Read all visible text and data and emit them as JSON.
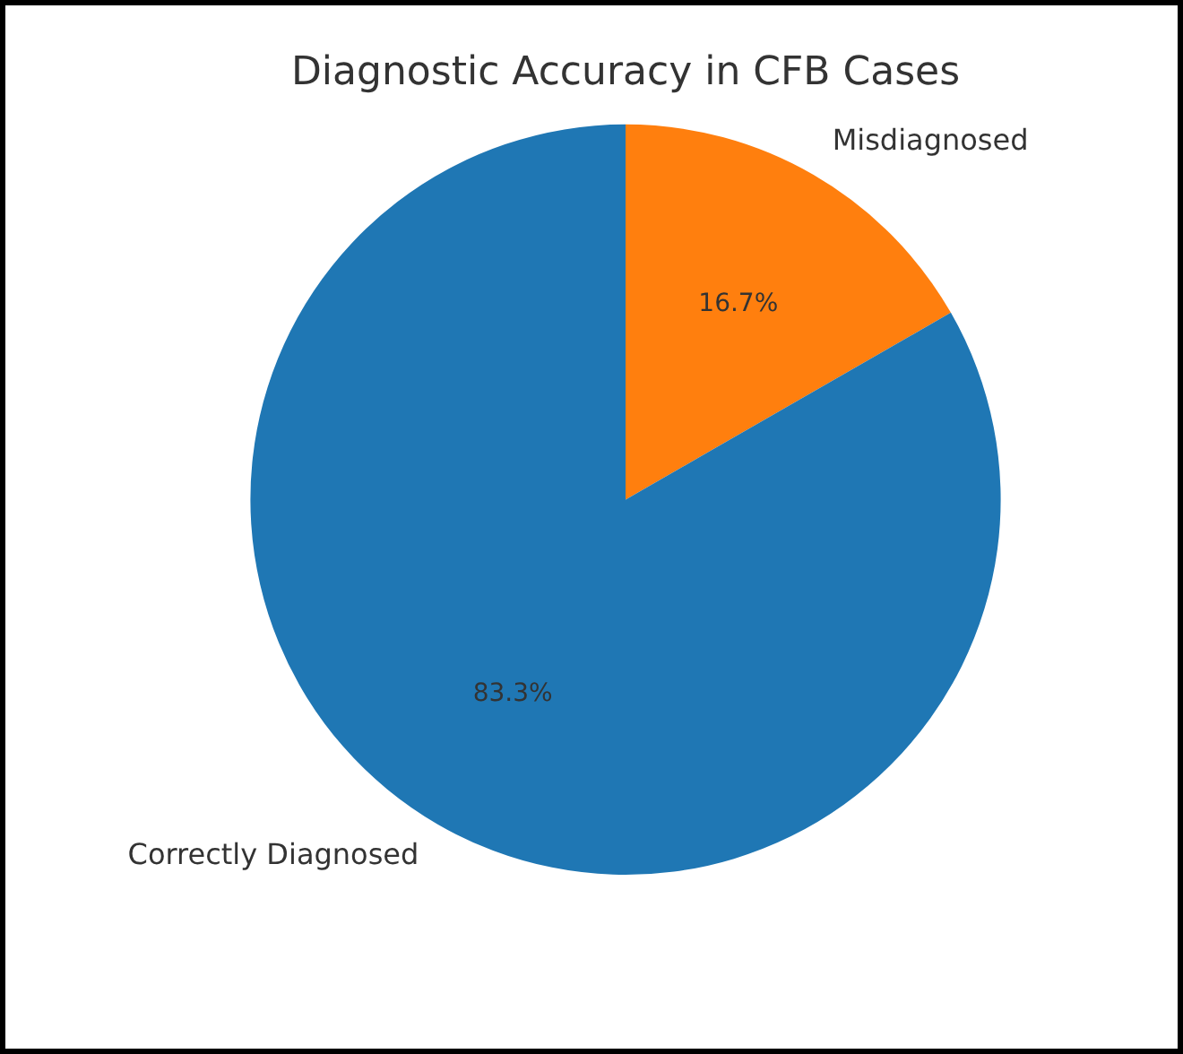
{
  "chart_data": {
    "type": "pie",
    "title": "Diagnostic Accuracy in CFB Cases",
    "categories": [
      "Misdiagnosed",
      "Correctly Diagnosed"
    ],
    "values": [
      16.7,
      83.3
    ],
    "colors": [
      "#ff7f0e",
      "#1f77b4"
    ],
    "value_labels": [
      "16.7%",
      "83.3%"
    ],
    "legend": false
  }
}
